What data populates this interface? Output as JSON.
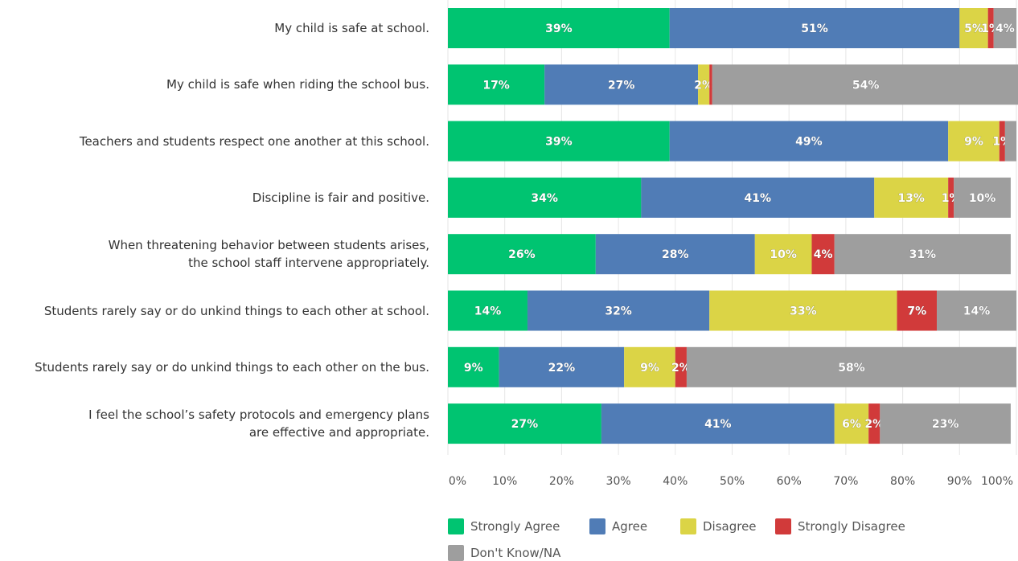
{
  "chart_data": {
    "type": "bar",
    "orientation": "horizontal",
    "stacked": true,
    "categories": [
      [
        "My child is safe at school."
      ],
      [
        "My child is safe when riding the school bus."
      ],
      [
        "Teachers and students respect one another at this school."
      ],
      [
        "Discipline is fair and positive."
      ],
      [
        "When threatening behavior between students arises,",
        "the school staff intervene appropriately."
      ],
      [
        "Students rarely say or do unkind things to each other at school."
      ],
      [
        "Students rarely say or do unkind things to each other on the bus."
      ],
      [
        "I feel the school’s safety protocols and emergency plans",
        "are effective and appropriate."
      ]
    ],
    "series": [
      {
        "name": "Strongly Agree",
        "color": "#00c471",
        "values": [
          39,
          17,
          39,
          34,
          26,
          14,
          9,
          27
        ]
      },
      {
        "name": "Agree",
        "color": "#507cb6",
        "values": [
          51,
          27,
          49,
          41,
          28,
          32,
          22,
          41
        ]
      },
      {
        "name": "Disagree",
        "color": "#dbd446",
        "values": [
          5,
          2,
          9,
          13,
          10,
          33,
          9,
          6
        ]
      },
      {
        "name": "Strongly Disagree",
        "color": "#d13a3a",
        "values": [
          1,
          0.5,
          1,
          1,
          4,
          7,
          2,
          2
        ]
      },
      {
        "name": "Don't Know/NA",
        "color": "#9e9e9e",
        "values": [
          4,
          54,
          2,
          10,
          31,
          14,
          58,
          23
        ]
      }
    ],
    "data_labels": [
      [
        "39%",
        "51%",
        "5%",
        "1%",
        "4%"
      ],
      [
        "17%",
        "27%",
        "2%",
        "",
        "54%"
      ],
      [
        "39%",
        "49%",
        "9%",
        "1%",
        ""
      ],
      [
        "34%",
        "41%",
        "13%",
        "1%",
        "10%"
      ],
      [
        "26%",
        "28%",
        "10%",
        "4%",
        "31%"
      ],
      [
        "14%",
        "32%",
        "33%",
        "7%",
        "14%"
      ],
      [
        "9%",
        "22%",
        "9%",
        "2%",
        "58%"
      ],
      [
        "27%",
        "41%",
        "6%",
        "2%",
        "23%"
      ]
    ],
    "xlim": [
      0,
      100
    ],
    "xticks": [
      "0%",
      "10%",
      "20%",
      "30%",
      "40%",
      "50%",
      "60%",
      "70%",
      "80%",
      "90%",
      "100%"
    ],
    "grid": true,
    "legend_position": "bottom"
  }
}
